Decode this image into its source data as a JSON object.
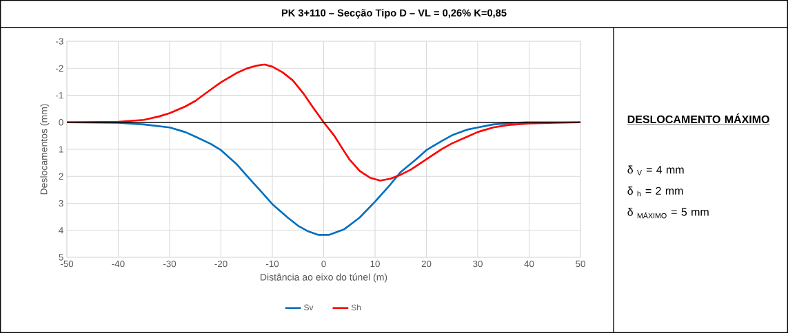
{
  "chart_data": {
    "type": "line",
    "title": "PK 3+110 – Secção Tipo D – VL = 0,26%  K=0,85",
    "xlabel": "Distância ao eixo do túnel (m)",
    "ylabel": "Deslocamentos (mm)",
    "xlim": [
      -50,
      50
    ],
    "xticks": [
      -50,
      -40,
      -30,
      -20,
      -10,
      0,
      10,
      20,
      30,
      40,
      50
    ],
    "ylim": [
      5,
      -3
    ],
    "yticks": [
      -3,
      -2,
      -1,
      0,
      1,
      2,
      3,
      4,
      5
    ],
    "grid": true,
    "legend": "bottom",
    "marker": "none",
    "line_style": "solid",
    "ref_lines": [
      {
        "axis": "y",
        "value": 0,
        "color": "#000000"
      }
    ],
    "annotations": [
      "DESLOCAMENTO MÁXIMO",
      "δ $_{V}$ = 4 mm",
      "δ $_{h}$ = 2 mm",
      "δ $_{MÁXIMO}$ = 5 mm"
    ],
    "series": [
      {
        "name": "Sv",
        "color": "#0070c0",
        "x": [
          -50,
          -40,
          -35,
          -30,
          -27,
          -25,
          -22,
          -20,
          -17,
          -15,
          -12,
          -10,
          -7,
          -5,
          -3,
          -1,
          0,
          1,
          4,
          7,
          10,
          13,
          15,
          18,
          20,
          23,
          25,
          28,
          30,
          33,
          37,
          40,
          50
        ],
        "values": [
          0,
          0.02,
          0.08,
          0.19,
          0.36,
          0.53,
          0.8,
          1.03,
          1.54,
          1.97,
          2.6,
          3.03,
          3.53,
          3.83,
          4.04,
          4.17,
          4.17,
          4.17,
          3.96,
          3.53,
          2.94,
          2.3,
          1.84,
          1.37,
          1.03,
          0.69,
          0.48,
          0.27,
          0.19,
          0.08,
          0.02,
          0,
          0
        ]
      },
      {
        "name": "Sh",
        "color": "#ff0000",
        "x": [
          -50,
          -40,
          -35,
          -32,
          -30,
          -27,
          -25,
          -22,
          -20,
          -17,
          -15,
          -13,
          -11.5,
          -10,
          -8,
          -6,
          -4,
          -2,
          0,
          2,
          4,
          5,
          7,
          9,
          11,
          13,
          15,
          17,
          20,
          23,
          25,
          28,
          30,
          33,
          36,
          40,
          45,
          50
        ],
        "values": [
          0,
          -0.02,
          -0.09,
          -0.22,
          -0.34,
          -0.58,
          -0.79,
          -1.21,
          -1.48,
          -1.82,
          -1.99,
          -2.1,
          -2.14,
          -2.06,
          -1.85,
          -1.55,
          -1.08,
          -0.53,
          0,
          0.48,
          1.08,
          1.37,
          1.8,
          2.05,
          2.16,
          2.09,
          1.94,
          1.75,
          1.37,
          0.99,
          0.78,
          0.53,
          0.36,
          0.19,
          0.1,
          0.04,
          0.02,
          0
        ]
      }
    ]
  }
}
